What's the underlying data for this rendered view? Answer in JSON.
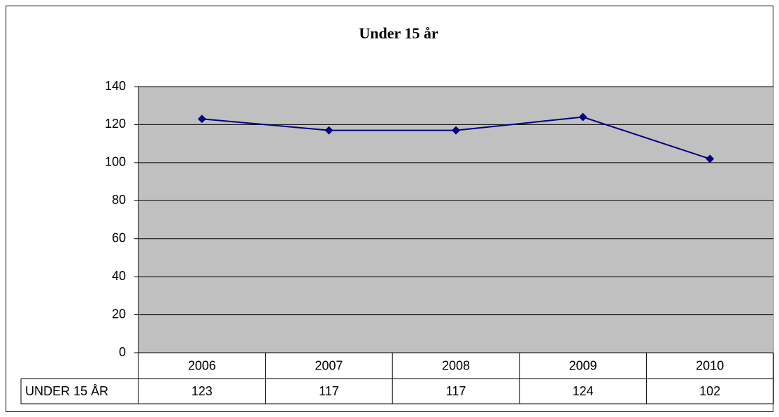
{
  "chart_data": {
    "type": "line",
    "title": "Under 15 år",
    "categories": [
      "2006",
      "2007",
      "2008",
      "2009",
      "2010"
    ],
    "series": [
      {
        "name": "UNDER 15 ÅR",
        "color": "#000080",
        "values": [
          123,
          117,
          117,
          124,
          102
        ]
      }
    ],
    "ylim": [
      0,
      140
    ],
    "yticks": [
      0,
      20,
      40,
      60,
      80,
      100,
      120,
      140
    ],
    "grid": true,
    "data_table": true
  }
}
